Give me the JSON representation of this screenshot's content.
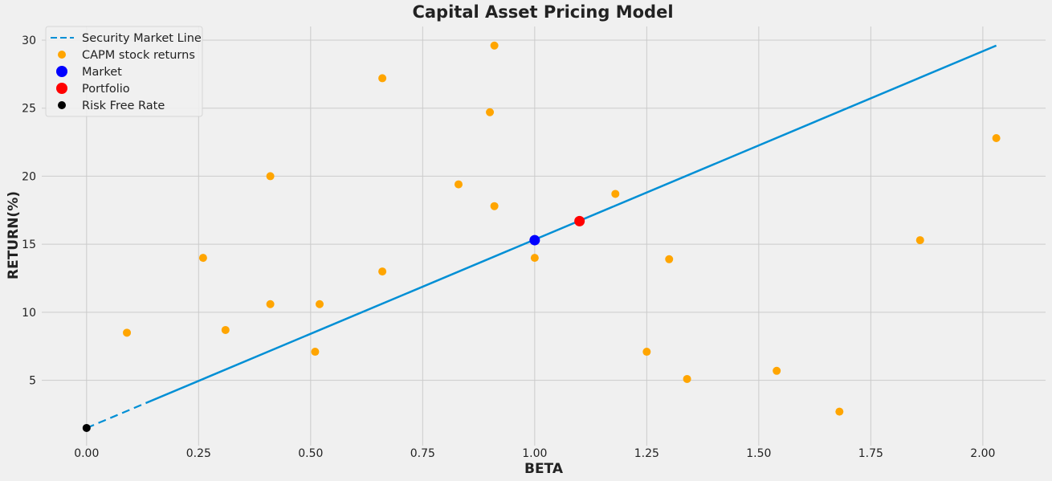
{
  "chart_data": {
    "type": "scatter",
    "title": "Capital Asset Pricing Model",
    "xlabel": "BETA",
    "ylabel": "RETURN(%)",
    "xlim": [
      -0.1,
      2.14
    ],
    "ylim": [
      0.2,
      31
    ],
    "x_ticks": [
      0.0,
      0.25,
      0.5,
      0.75,
      1.0,
      1.25,
      1.5,
      1.75,
      2.0
    ],
    "x_tick_labels": [
      "0.00",
      "0.25",
      "0.50",
      "0.75",
      "1.00",
      "1.25",
      "1.50",
      "1.75",
      "2.00"
    ],
    "y_ticks": [
      5,
      10,
      15,
      20,
      25,
      30
    ],
    "y_tick_labels": [
      "5",
      "10",
      "15",
      "20",
      "25",
      "30"
    ],
    "grid": true,
    "legend_position": "top-left",
    "colors": {
      "background": "#f0f0f0",
      "grid": "#cbcbcb",
      "sml": "#008fd5",
      "stocks": "#ffa500",
      "market": "#0000ff",
      "portfolio": "#ff0000",
      "risk_free": "#000000"
    },
    "legend": [
      {
        "key": "sml",
        "label": "Security Market Line",
        "marker": "dashed-line"
      },
      {
        "key": "stocks",
        "label": "CAPM stock returns",
        "marker": "small-dot"
      },
      {
        "key": "market",
        "label": "Market",
        "marker": "large-dot"
      },
      {
        "key": "portfolio",
        "label": "Portfolio",
        "marker": "large-dot"
      },
      {
        "key": "risk_free",
        "label": "Risk Free Rate",
        "marker": "small-dot"
      }
    ],
    "security_market_line": {
      "x": [
        0.0,
        2.03
      ],
      "y": [
        1.5,
        29.6
      ]
    },
    "stock_returns": [
      {
        "x": 0.09,
        "y": 8.5
      },
      {
        "x": 0.26,
        "y": 14.0
      },
      {
        "x": 0.31,
        "y": 8.7
      },
      {
        "x": 0.41,
        "y": 20.0
      },
      {
        "x": 0.41,
        "y": 10.6
      },
      {
        "x": 0.51,
        "y": 7.1
      },
      {
        "x": 0.52,
        "y": 10.6
      },
      {
        "x": 0.66,
        "y": 27.2
      },
      {
        "x": 0.66,
        "y": 13.0
      },
      {
        "x": 0.83,
        "y": 19.4
      },
      {
        "x": 0.9,
        "y": 24.7
      },
      {
        "x": 0.91,
        "y": 29.6
      },
      {
        "x": 0.91,
        "y": 17.8
      },
      {
        "x": 1.0,
        "y": 14.0
      },
      {
        "x": 1.18,
        "y": 18.7
      },
      {
        "x": 1.25,
        "y": 7.1
      },
      {
        "x": 1.3,
        "y": 13.9
      },
      {
        "x": 1.34,
        "y": 5.1
      },
      {
        "x": 1.54,
        "y": 5.7
      },
      {
        "x": 1.68,
        "y": 2.7
      },
      {
        "x": 1.86,
        "y": 15.3
      },
      {
        "x": 2.03,
        "y": 22.8
      }
    ],
    "market": {
      "x": 1.0,
      "y": 15.3
    },
    "portfolio": {
      "x": 1.1,
      "y": 16.7
    },
    "risk_free": {
      "x": 0.0,
      "y": 1.5
    }
  }
}
